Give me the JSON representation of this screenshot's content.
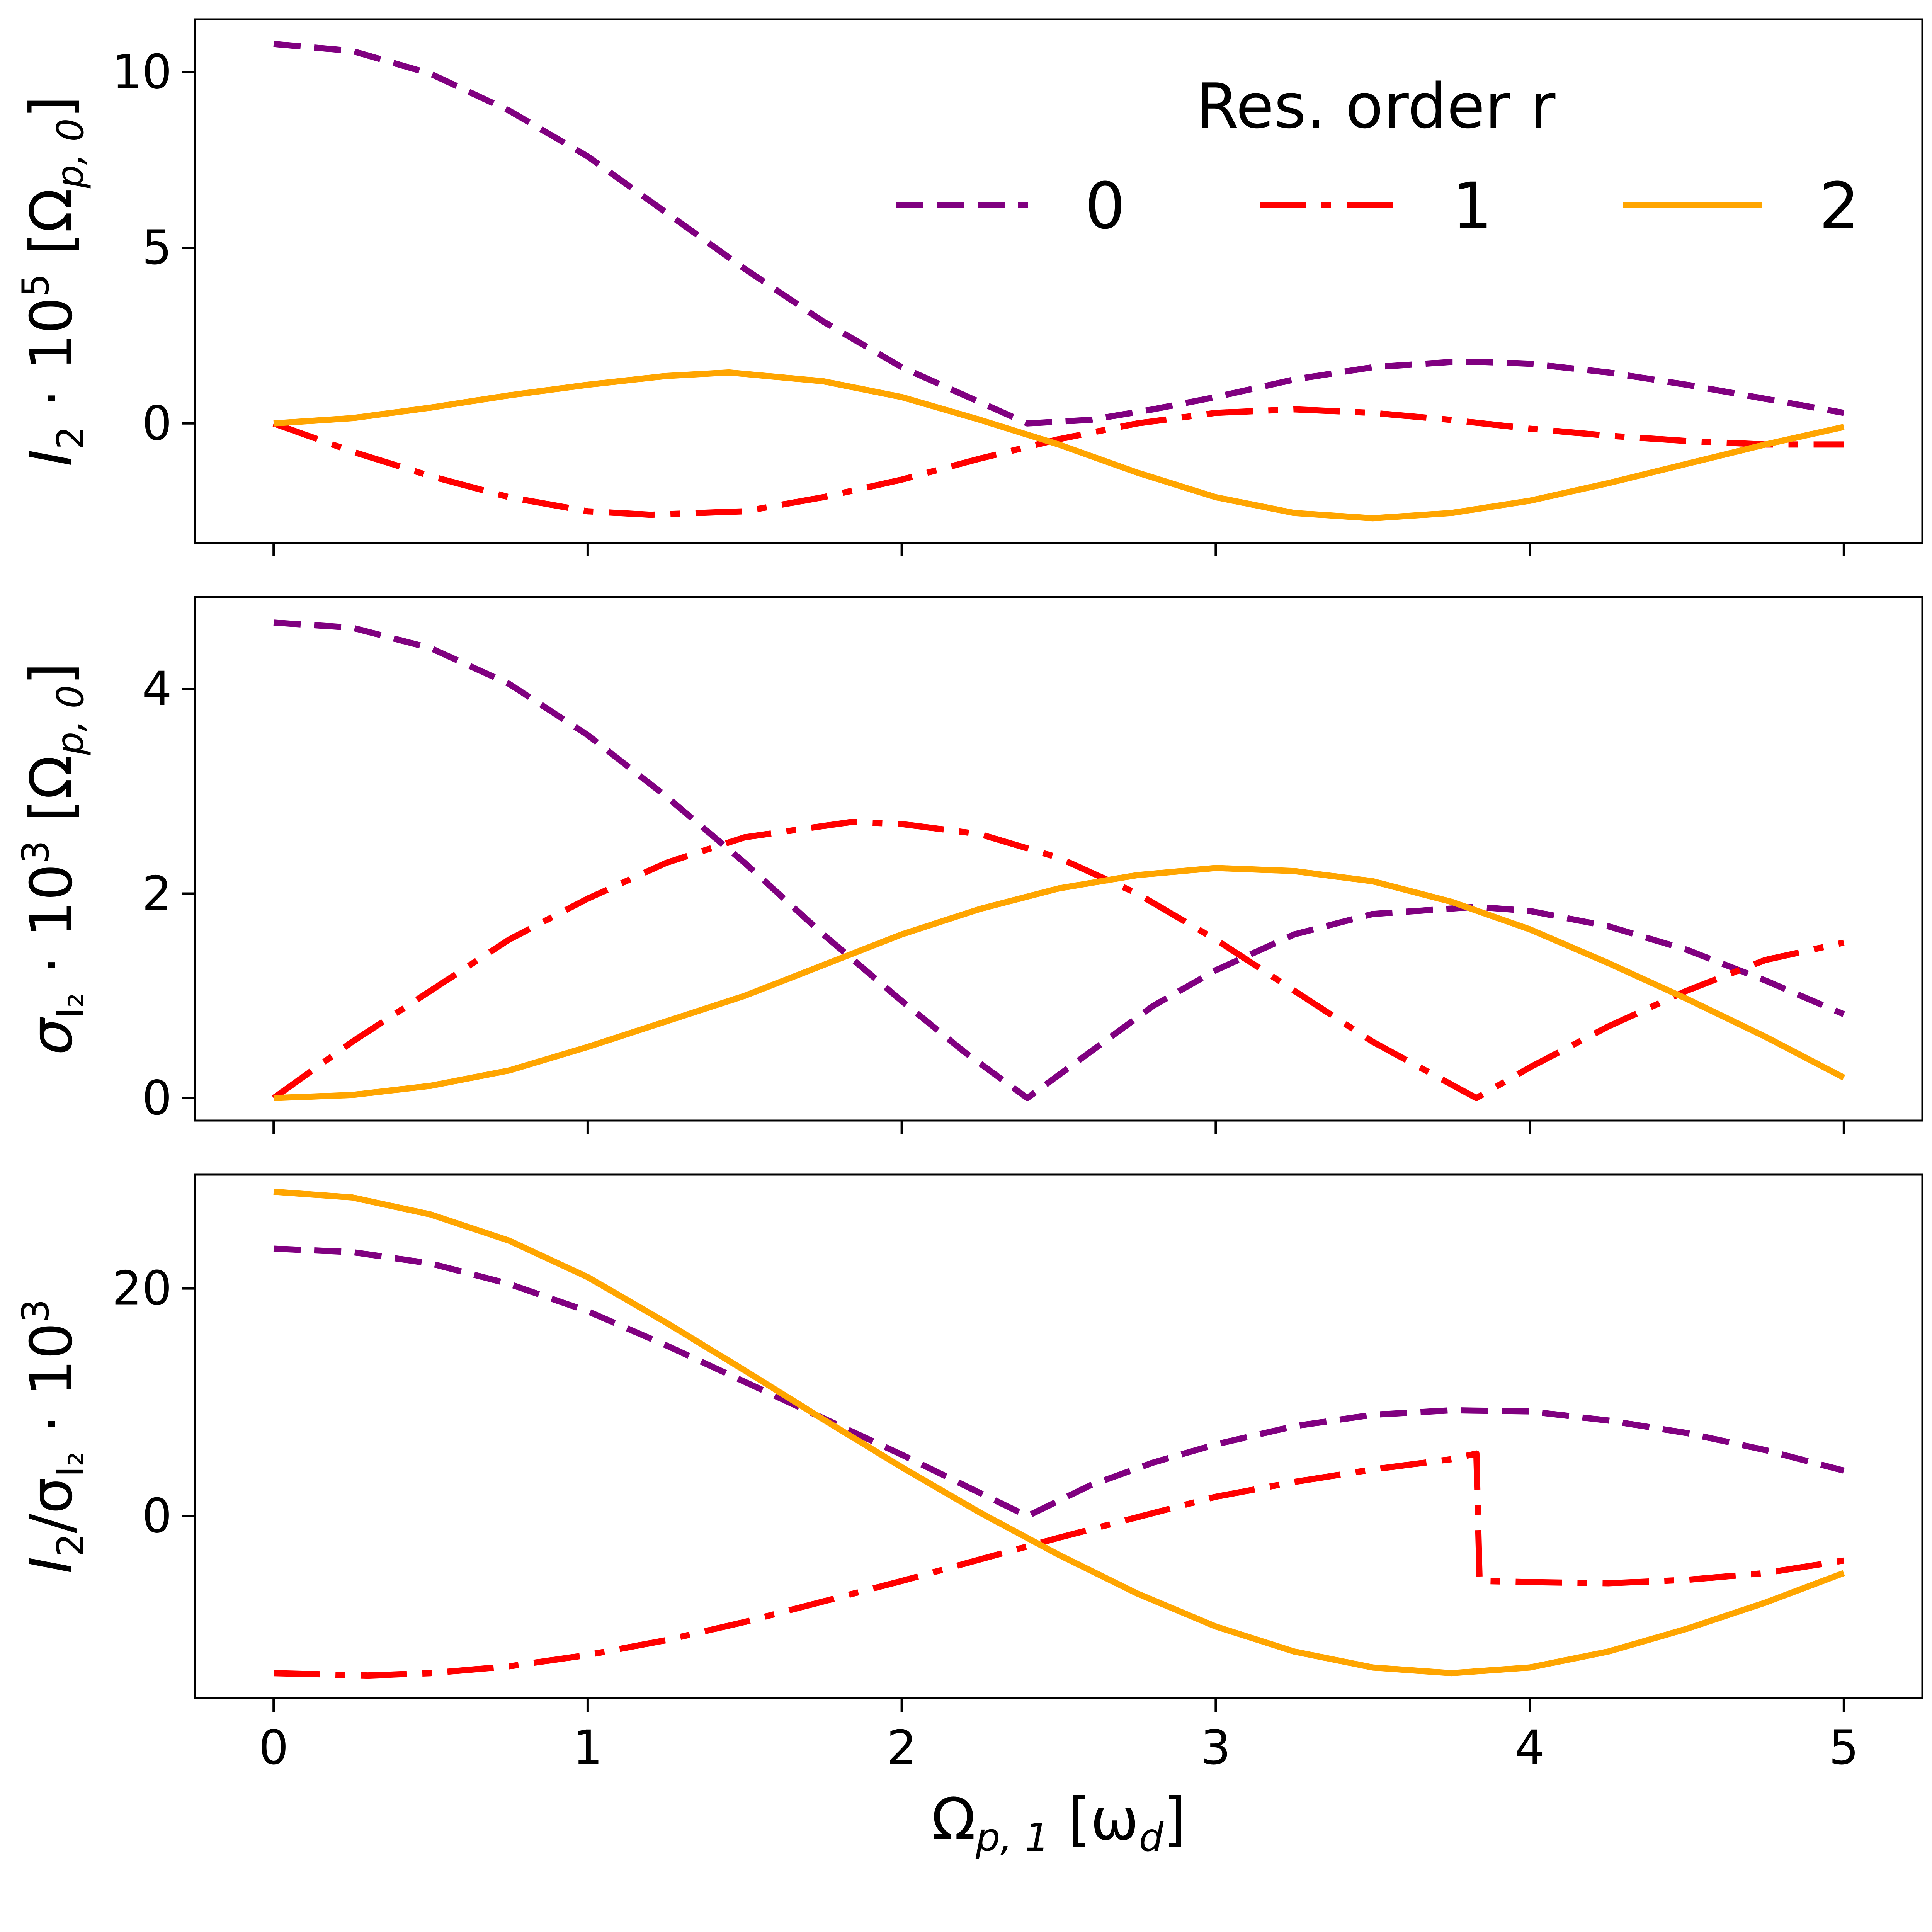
{
  "colors": {
    "r0": "#800080",
    "r1": "#ff0000",
    "r2": "#ffa500"
  },
  "legend": {
    "title": "Res. order r",
    "placement": "upper-right",
    "entries": [
      "0",
      "1",
      "2"
    ]
  },
  "chart_data": [
    {
      "type": "line",
      "panel": "top",
      "ylabel_parts": {
        "main": "I",
        "sub": "2",
        "mid": " · 10",
        "sup": "5",
        "unit": " [Ω",
        "unit_sub": "p, 0",
        "unit_end": "]"
      },
      "xlim": [
        -0.25,
        5.25
      ],
      "ylim": [
        -3.4,
        11.5
      ],
      "yticks": [
        0,
        5,
        10
      ],
      "yticklabels": [
        "0",
        "5",
        "10"
      ],
      "xticks": [
        0,
        1,
        2,
        3,
        4,
        5
      ],
      "show_xticklabels": false,
      "series": [
        {
          "name": "0",
          "style": "dashed",
          "color": "#800080",
          "x": [
            0,
            0.25,
            0.5,
            0.75,
            1.0,
            1.25,
            1.5,
            1.75,
            2.0,
            2.25,
            2.4,
            2.6,
            2.8,
            3.0,
            3.25,
            3.5,
            3.75,
            3.85,
            4.0,
            4.25,
            4.5,
            4.75,
            5.0
          ],
          "y": [
            10.8,
            10.6,
            9.95,
            8.9,
            7.6,
            6.0,
            4.4,
            2.9,
            1.6,
            0.6,
            0.0,
            0.1,
            0.4,
            0.75,
            1.25,
            1.6,
            1.75,
            1.75,
            1.7,
            1.45,
            1.1,
            0.7,
            0.3
          ]
        },
        {
          "name": "1",
          "style": "dashdot",
          "color": "#ff0000",
          "x": [
            0,
            0.25,
            0.5,
            0.75,
            1.0,
            1.2,
            1.5,
            1.75,
            2.0,
            2.25,
            2.5,
            2.75,
            3.0,
            3.25,
            3.5,
            3.75,
            4.0,
            4.25,
            4.5,
            4.75,
            5.0
          ],
          "y": [
            0.0,
            -0.8,
            -1.5,
            -2.1,
            -2.5,
            -2.6,
            -2.5,
            -2.1,
            -1.6,
            -1.0,
            -0.45,
            0.0,
            0.3,
            0.4,
            0.3,
            0.1,
            -0.15,
            -0.35,
            -0.5,
            -0.6,
            -0.6
          ]
        },
        {
          "name": "2",
          "style": "solid",
          "color": "#ffa500",
          "x": [
            0,
            0.25,
            0.5,
            0.75,
            1.0,
            1.25,
            1.45,
            1.75,
            2.0,
            2.25,
            2.5,
            2.75,
            3.0,
            3.25,
            3.5,
            3.75,
            4.0,
            4.25,
            4.5,
            4.75,
            5.0
          ],
          "y": [
            0.0,
            0.15,
            0.45,
            0.8,
            1.1,
            1.35,
            1.45,
            1.2,
            0.75,
            0.1,
            -0.6,
            -1.4,
            -2.1,
            -2.55,
            -2.7,
            -2.55,
            -2.2,
            -1.7,
            -1.15,
            -0.6,
            -0.1
          ]
        }
      ]
    },
    {
      "type": "line",
      "panel": "middle",
      "ylabel_parts": {
        "main": "σ",
        "sub": "I₂",
        "mid": " · 10",
        "sup": "3",
        "unit": "  [Ω",
        "unit_sub": "p, 0",
        "unit_end": "]"
      },
      "xlim": [
        -0.25,
        5.25
      ],
      "ylim": [
        -0.22,
        4.9
      ],
      "yticks": [
        0,
        2,
        4
      ],
      "yticklabels": [
        "0",
        "2",
        "4"
      ],
      "xticks": [
        0,
        1,
        2,
        3,
        4,
        5
      ],
      "show_xticklabels": false,
      "series": [
        {
          "name": "0",
          "style": "dashed",
          "color": "#800080",
          "x": [
            0,
            0.25,
            0.5,
            0.75,
            1.0,
            1.25,
            1.5,
            1.75,
            2.0,
            2.2,
            2.4,
            2.6,
            2.8,
            3.0,
            3.25,
            3.5,
            3.83,
            4.0,
            4.25,
            4.5,
            4.75,
            5.0
          ],
          "y": [
            4.65,
            4.6,
            4.4,
            4.05,
            3.55,
            2.95,
            2.3,
            1.6,
            0.95,
            0.45,
            0.0,
            0.45,
            0.9,
            1.25,
            1.6,
            1.8,
            1.87,
            1.83,
            1.68,
            1.45,
            1.15,
            0.82
          ]
        },
        {
          "name": "1",
          "style": "dashdot",
          "color": "#ff0000",
          "x": [
            0,
            0.25,
            0.5,
            0.75,
            1.0,
            1.25,
            1.5,
            1.84,
            2.0,
            2.25,
            2.5,
            2.75,
            3.0,
            3.25,
            3.5,
            3.83,
            4.0,
            4.25,
            4.5,
            4.75,
            5.0
          ],
          "y": [
            0.0,
            0.55,
            1.05,
            1.55,
            1.95,
            2.3,
            2.55,
            2.7,
            2.68,
            2.58,
            2.35,
            2.0,
            1.55,
            1.05,
            0.55,
            0.0,
            0.3,
            0.7,
            1.05,
            1.35,
            1.52
          ]
        },
        {
          "name": "2",
          "style": "solid",
          "color": "#ffa500",
          "x": [
            0,
            0.25,
            0.5,
            0.75,
            1.0,
            1.25,
            1.5,
            1.75,
            2.0,
            2.25,
            2.5,
            2.75,
            3.0,
            3.25,
            3.5,
            3.75,
            4.0,
            4.25,
            4.5,
            4.75,
            5.0
          ],
          "y": [
            0.0,
            0.03,
            0.12,
            0.27,
            0.5,
            0.75,
            1.0,
            1.3,
            1.6,
            1.85,
            2.05,
            2.18,
            2.25,
            2.22,
            2.12,
            1.92,
            1.65,
            1.32,
            0.97,
            0.6,
            0.2
          ]
        }
      ]
    },
    {
      "type": "line",
      "panel": "bottom",
      "ylabel_parts": {
        "main": "I",
        "sub": "2",
        "mid": "/σ",
        "sub2": "I₂",
        "mid2": " · 10",
        "sup": "3"
      },
      "xlim": [
        -0.25,
        5.25
      ],
      "ylim": [
        -16.0,
        30.0
      ],
      "yticks": [
        0,
        20
      ],
      "yticklabels": [
        "0",
        "20"
      ],
      "xticks": [
        0,
        1,
        2,
        3,
        4,
        5
      ],
      "xticklabels": [
        "0",
        "1",
        "2",
        "3",
        "4",
        "5"
      ],
      "show_xticklabels": true,
      "xlabel_parts": {
        "main": "Ω",
        "sub": "p, 1",
        "unit": " [ω",
        "unit_sub": "d",
        "unit_end": "]"
      },
      "series": [
        {
          "name": "0",
          "style": "dashed",
          "color": "#800080",
          "x": [
            0,
            0.25,
            0.5,
            0.75,
            1.0,
            1.25,
            1.5,
            1.75,
            2.0,
            2.2,
            2.4,
            2.6,
            2.8,
            3.0,
            3.25,
            3.5,
            3.75,
            4.0,
            4.25,
            4.5,
            4.75,
            5.0
          ],
          "y": [
            23.5,
            23.2,
            22.2,
            20.4,
            18.0,
            15.0,
            11.8,
            8.6,
            5.4,
            2.7,
            0.0,
            2.7,
            4.7,
            6.3,
            7.9,
            8.9,
            9.3,
            9.2,
            8.4,
            7.3,
            5.8,
            4.0
          ]
        },
        {
          "name": "1",
          "style": "dashdot",
          "color": "#ff0000",
          "x": [
            0,
            0.3,
            0.5,
            0.75,
            1.0,
            1.25,
            1.5,
            1.75,
            2.0,
            2.25,
            2.5,
            2.75,
            3.0,
            3.25,
            3.5,
            3.75,
            3.83,
            3.84,
            4.0,
            4.25,
            4.5,
            4.75,
            5.0
          ],
          "y": [
            -13.8,
            -14.0,
            -13.8,
            -13.2,
            -12.2,
            -10.9,
            -9.3,
            -7.5,
            -5.7,
            -3.8,
            -1.9,
            -0.1,
            1.7,
            3.0,
            4.1,
            5.0,
            5.5,
            -5.7,
            -5.8,
            -5.9,
            -5.6,
            -5.0,
            -3.9
          ]
        },
        {
          "name": "2",
          "style": "solid",
          "color": "#ffa500",
          "x": [
            0,
            0.25,
            0.5,
            0.75,
            1.0,
            1.25,
            1.5,
            1.75,
            2.0,
            2.25,
            2.5,
            2.75,
            3.0,
            3.25,
            3.5,
            3.75,
            4.0,
            4.25,
            4.5,
            4.75,
            5.0
          ],
          "y": [
            28.5,
            28.0,
            26.5,
            24.2,
            21.0,
            17.0,
            12.8,
            8.5,
            4.3,
            0.3,
            -3.4,
            -6.8,
            -9.7,
            -11.9,
            -13.3,
            -13.8,
            -13.3,
            -11.9,
            -9.9,
            -7.6,
            -5.0
          ]
        }
      ]
    }
  ]
}
